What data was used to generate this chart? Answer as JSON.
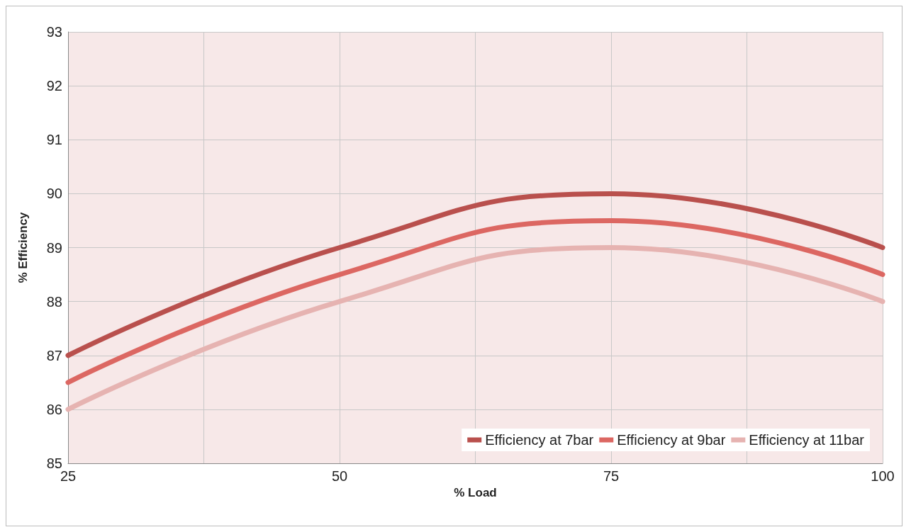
{
  "chart_data": {
    "type": "line",
    "xlabel": "% Load",
    "ylabel": "% Efficiency",
    "x": [
      25,
      50,
      75,
      100
    ],
    "series": [
      {
        "name": "Efficiency at 7bar",
        "color": "#b9504d",
        "values": [
          87,
          89,
          90,
          89
        ]
      },
      {
        "name": "Efficiency at 9bar",
        "color": "#dc6762",
        "values": [
          86.5,
          88.5,
          89.5,
          88.5
        ]
      },
      {
        "name": "Efficiency at 11bar",
        "color": "#e6b3b1",
        "values": [
          86,
          88,
          89,
          88
        ]
      }
    ],
    "xlim": [
      25,
      100
    ],
    "xticks": [
      25,
      {
        "value": 37.5,
        "label": null
      },
      50,
      {
        "value": 62.5,
        "label": null
      },
      75,
      {
        "value": 87.5,
        "label": null
      },
      100
    ],
    "ylim": [
      85,
      93
    ],
    "yticks": [
      85,
      86,
      87,
      88,
      89,
      90,
      91,
      92,
      93
    ],
    "grid": true,
    "legend": "bottom right",
    "marker": "none",
    "line_style": "solid"
  }
}
